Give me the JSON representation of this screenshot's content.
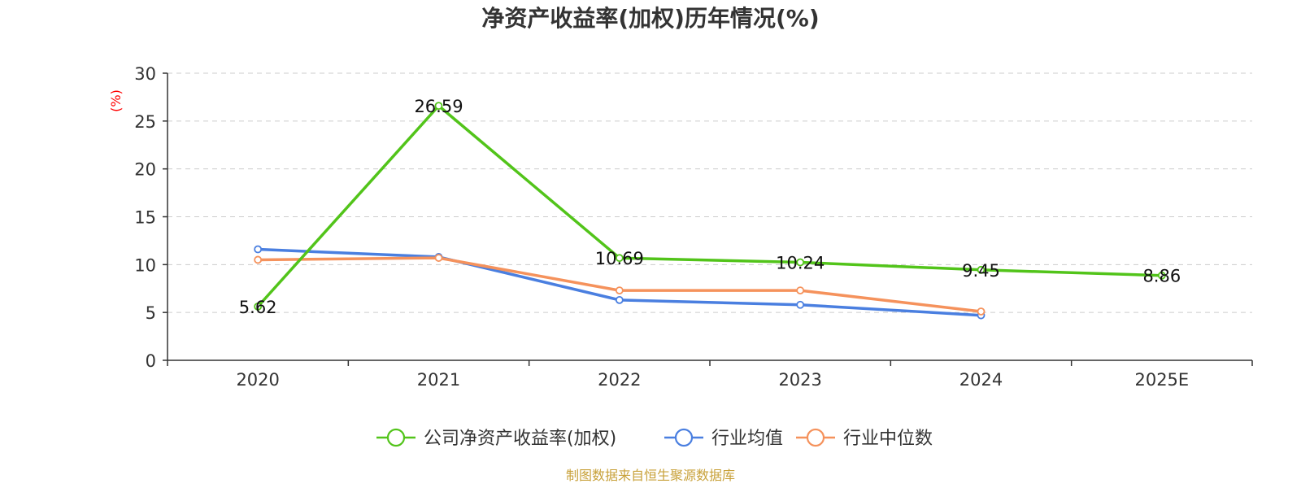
{
  "chart_data": {
    "type": "line",
    "title": "净资产收益率(加权)历年情况(%)",
    "ylabel": "(%)",
    "ylabel_color": "#ff0000",
    "xlabel": "",
    "categories": [
      "2020",
      "2021",
      "2022",
      "2023",
      "2024",
      "2025E"
    ],
    "ylim": [
      0,
      30
    ],
    "yticks": [
      0,
      5,
      10,
      15,
      20,
      25,
      30
    ],
    "grid": true,
    "legend_position": "bottom-center",
    "series": [
      {
        "name": "公司净资产收益率(加权)",
        "color": "#52c41a",
        "values": [
          5.62,
          26.59,
          10.69,
          10.24,
          9.45,
          8.86
        ],
        "data_labels": [
          "5.62",
          "26.59",
          "10.69",
          "10.24",
          "9.45",
          "8.86"
        ],
        "show_labels": true
      },
      {
        "name": "行业均值",
        "color": "#4a7fe0",
        "values": [
          11.6,
          10.8,
          6.3,
          5.8,
          4.7,
          null
        ],
        "show_labels": false
      },
      {
        "name": "行业中位数",
        "color": "#f5925c",
        "values": [
          10.5,
          10.7,
          7.3,
          7.3,
          5.1,
          null
        ],
        "show_labels": false
      }
    ],
    "source": "制图数据来自恒生聚源数据库",
    "source_color": "#c8a13a"
  }
}
